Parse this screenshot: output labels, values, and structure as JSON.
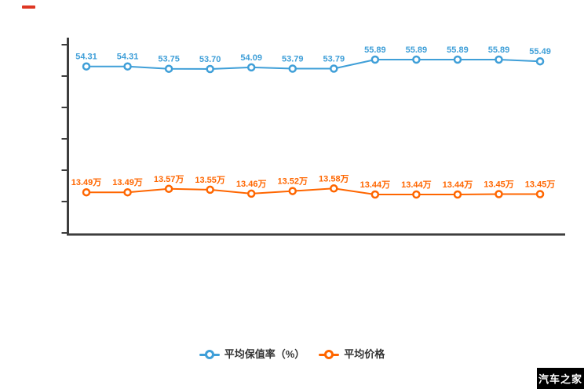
{
  "page": {
    "background": "#ffffff"
  },
  "decorations": {
    "red_dash_color": "#de3723"
  },
  "watermark": {
    "text": "汽车之家",
    "bg": "#000000",
    "color": "#ffffff"
  },
  "chart_data": {
    "type": "line",
    "x": [
      "1",
      "2",
      "3",
      "4",
      "5",
      "6",
      "7",
      "8",
      "9",
      "10",
      "11",
      "12"
    ],
    "x_axis_labels_visible": false,
    "y_axis_labels_visible": false,
    "y_axis_tick_count": 7,
    "grid": false,
    "legend_position": "bottom",
    "axis_color": "#3d3d3d",
    "series": [
      {
        "name": "平均保值率（%）",
        "color": "#3f9fd8",
        "values": [
          54.31,
          54.31,
          53.75,
          53.7,
          54.09,
          53.79,
          53.79,
          55.89,
          55.89,
          55.89,
          55.89,
          55.49
        ],
        "point_labels": [
          "54.31",
          "54.31",
          "53.75",
          "53.70",
          "54.09",
          "53.79",
          "53.79",
          "55.89",
          "55.89",
          "55.89",
          "55.89",
          "55.49"
        ]
      },
      {
        "name": "平均价格",
        "color": "#ff6600",
        "values": [
          13.49,
          13.49,
          13.57,
          13.55,
          13.46,
          13.52,
          13.58,
          13.44,
          13.44,
          13.44,
          13.45,
          13.45
        ],
        "point_labels": [
          "13.49万",
          "13.49万",
          "13.57万",
          "13.55万",
          "13.46万",
          "13.52万",
          "13.58万",
          "13.44万",
          "13.44万",
          "13.44万",
          "13.45万",
          "13.45万"
        ]
      }
    ]
  }
}
